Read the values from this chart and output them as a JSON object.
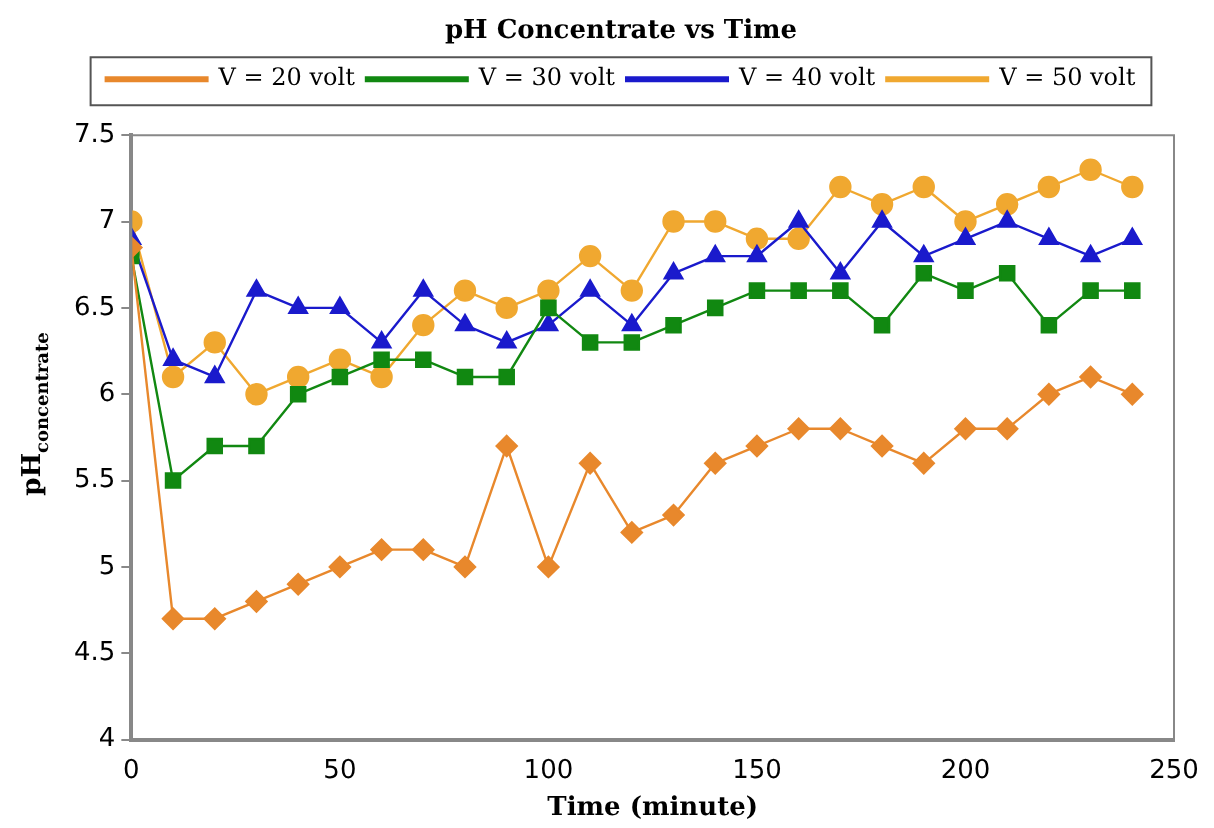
{
  "chart_data": {
    "type": "line",
    "title": "pH Concentrate vs Time",
    "xlabel": "Time (minute)",
    "ylabel": "pH$_{concentrate}$",
    "x": [
      0,
      10,
      20,
      30,
      40,
      50,
      60,
      70,
      80,
      90,
      100,
      110,
      120,
      130,
      140,
      150,
      160,
      170,
      180,
      190,
      200,
      210,
      220,
      230,
      240
    ],
    "xlim": [
      0,
      250
    ],
    "xticks": [
      0,
      50,
      100,
      150,
      200,
      250
    ],
    "ylim": [
      4,
      7.5
    ],
    "yticks": [
      4,
      4.5,
      5,
      5.5,
      6,
      6.5,
      7,
      7.5
    ],
    "grid": false,
    "legend": "top",
    "line_style": "solid",
    "series": [
      {
        "name": "V = 20 volt",
        "color": "#e8882c",
        "marker": "diamond",
        "values": [
          6.85,
          4.7,
          4.7,
          4.8,
          4.9,
          5.0,
          5.1,
          5.1,
          5.0,
          5.7,
          5.0,
          5.6,
          5.2,
          5.3,
          5.6,
          5.7,
          5.8,
          5.8,
          5.7,
          5.6,
          5.8,
          5.8,
          6.0,
          6.1,
          6.0
        ]
      },
      {
        "name": "V = 30 volt",
        "color": "#118811",
        "marker": "square",
        "values": [
          6.8,
          5.5,
          5.7,
          5.7,
          6.0,
          6.1,
          6.2,
          6.2,
          6.1,
          6.1,
          6.5,
          6.3,
          6.3,
          6.4,
          6.5,
          6.6,
          6.6,
          6.6,
          6.4,
          6.7,
          6.6,
          6.7,
          6.4,
          6.6,
          6.6
        ]
      },
      {
        "name": "V = 40 volt",
        "color": "#1a1acc",
        "marker": "triangle",
        "values": [
          6.9,
          6.2,
          6.1,
          6.6,
          6.5,
          6.5,
          6.3,
          6.6,
          6.4,
          6.3,
          6.4,
          6.6,
          6.4,
          6.7,
          6.8,
          6.8,
          7.0,
          6.7,
          7.0,
          6.8,
          6.9,
          7.0,
          6.9,
          6.8,
          6.9
        ]
      },
      {
        "name": "V = 50 volt",
        "color": "#f0a830",
        "marker": "circle",
        "values": [
          7.0,
          6.1,
          6.3,
          6.0,
          6.1,
          6.2,
          6.1,
          6.4,
          6.6,
          6.5,
          6.6,
          6.8,
          6.6,
          7.0,
          7.0,
          6.9,
          6.9,
          7.2,
          7.1,
          7.2,
          7.0,
          7.1,
          7.2,
          7.3,
          7.2
        ]
      }
    ]
  }
}
